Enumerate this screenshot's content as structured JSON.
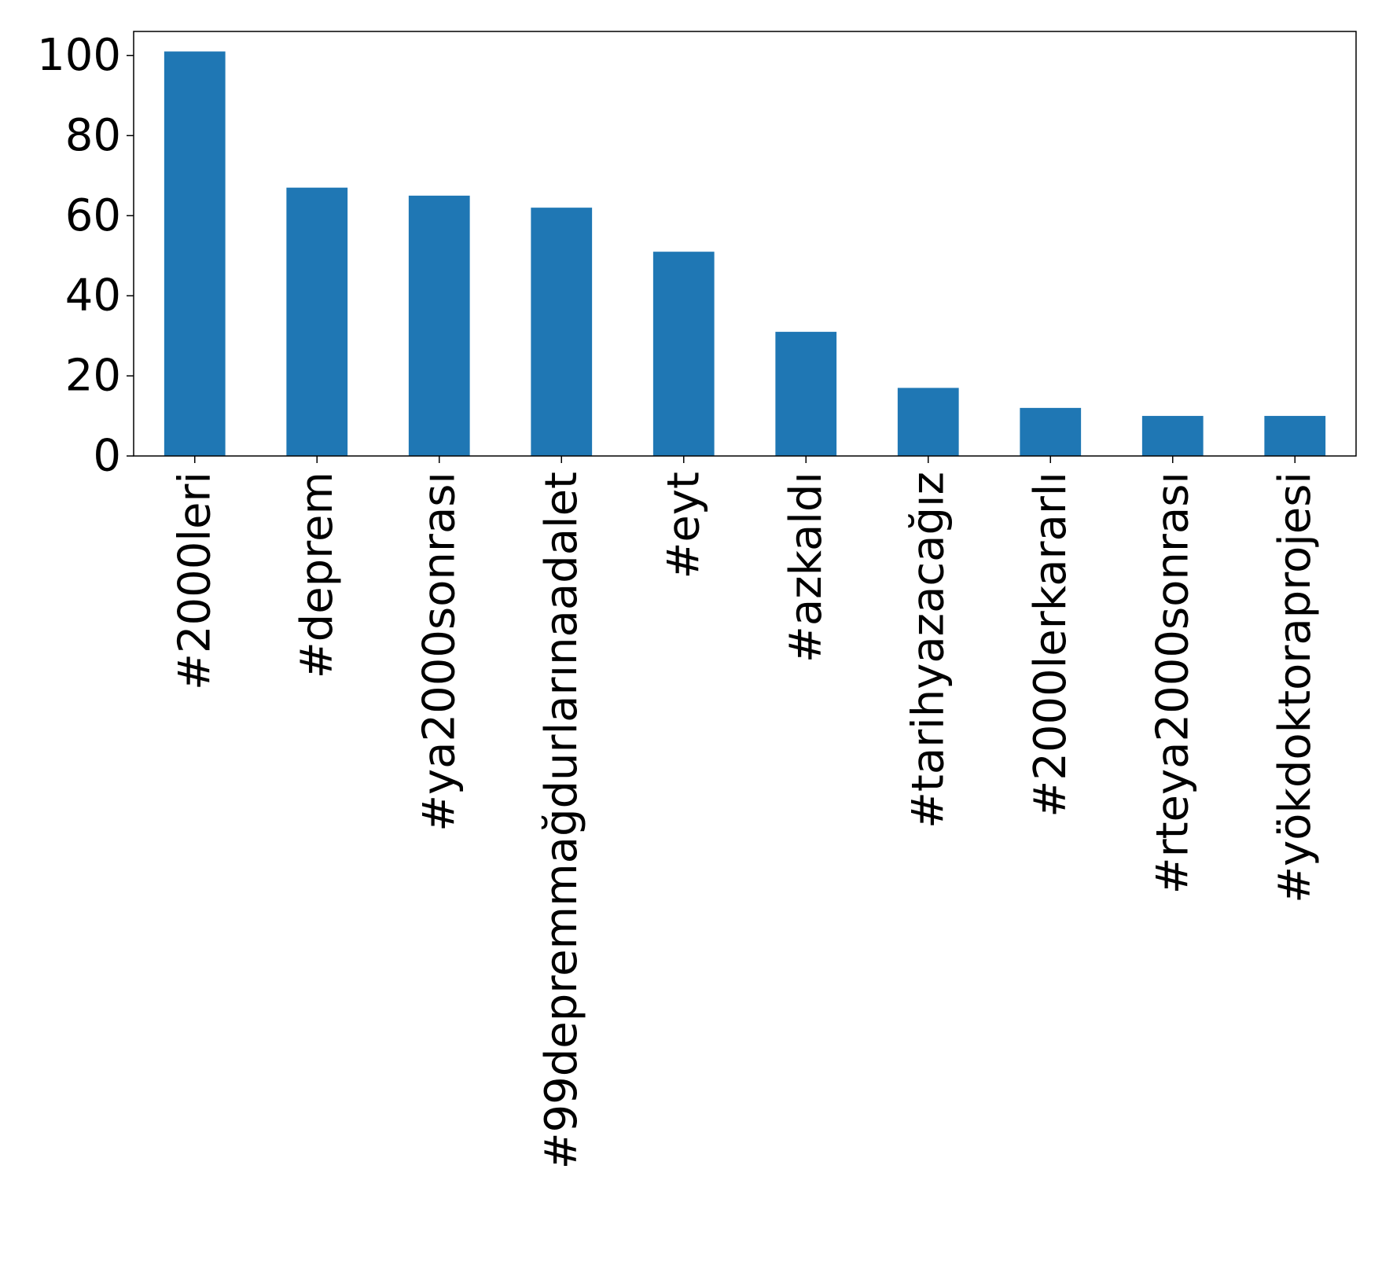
{
  "chart_data": {
    "type": "bar",
    "categories": [
      "#2000leri",
      "#deprem",
      "#ya2000sonrası",
      "#99depremmağdurlarınaadalet",
      "#eyt",
      "#azkaldı",
      "#tarihyazacağız",
      "#2000lerkararlı",
      "#rteya2000sonrası",
      "#yökdoktoraprojesi"
    ],
    "values": [
      101,
      67,
      65,
      62,
      51,
      31,
      17,
      12,
      10,
      10
    ],
    "title": "",
    "xlabel": "",
    "ylabel": "",
    "ylim": [
      0,
      106
    ],
    "yticks": [
      0,
      20,
      40,
      60,
      80,
      100
    ],
    "grid": false,
    "bar_color": "#1f77b4"
  }
}
